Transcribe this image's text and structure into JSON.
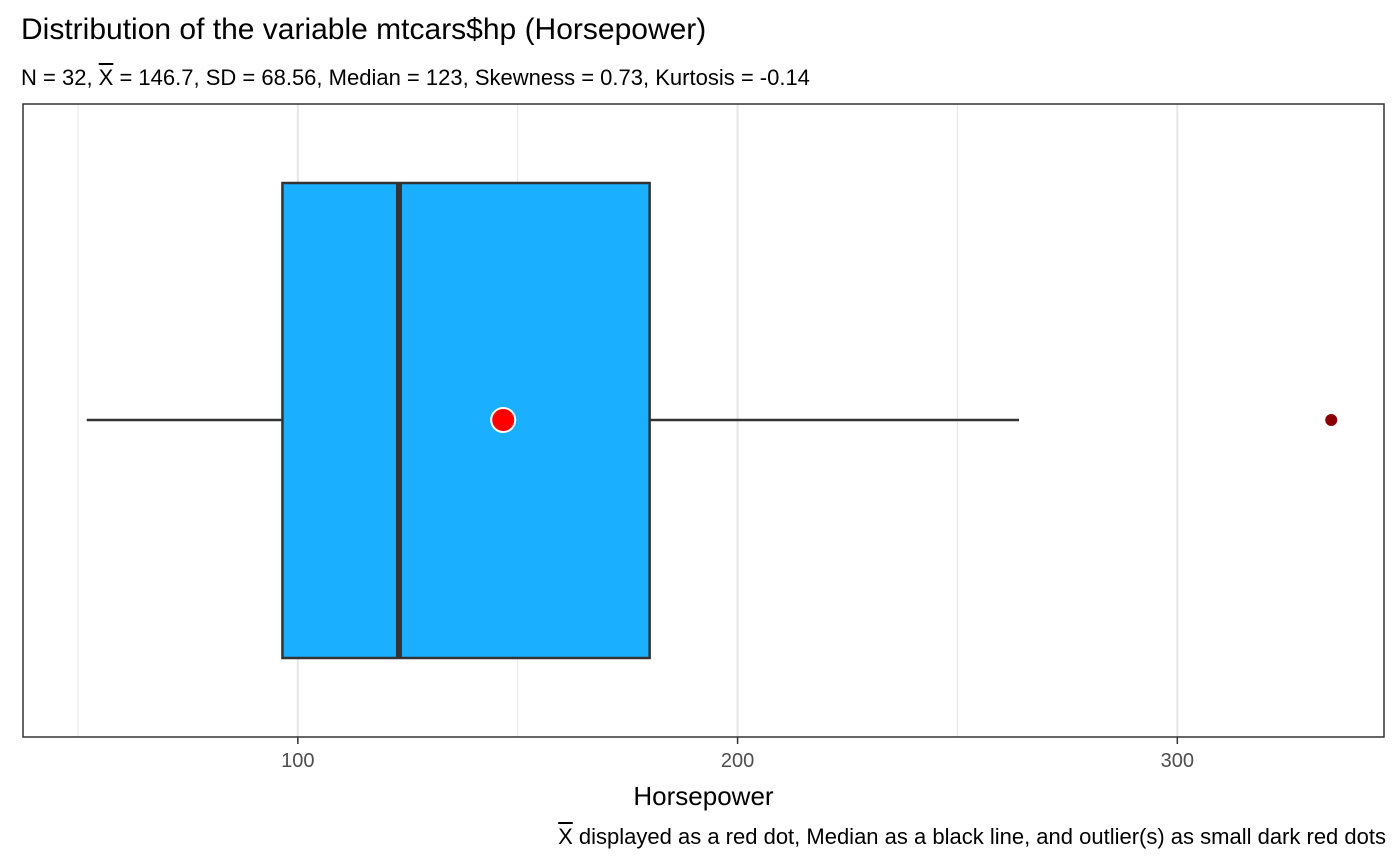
{
  "chart_data": {
    "type": "boxplot",
    "title": "Distribution of the variable mtcars$hp (Horsepower)",
    "subtitle": {
      "n": "N = 32",
      "mean_symbol": "X",
      "mean_text": " = 146.7",
      "sd": "SD = 68.56",
      "median": "Median = 123",
      "skewness": "Skewness = 0.73",
      "kurtosis": "Kurtosis = -0.14"
    },
    "xlabel": "Horsepower",
    "xlim": [
      37.5,
      347.0
    ],
    "xticks": [
      100,
      200,
      300
    ],
    "grid_major": [
      100,
      200,
      300
    ],
    "grid_minor": [
      50,
      150,
      250
    ],
    "stats": {
      "min": 52,
      "q1": 96.5,
      "median": 123,
      "q3": 180,
      "max": 264,
      "mean": 146.7,
      "sd": 68.56,
      "n": 32
    },
    "outliers": [
      335
    ],
    "colors": {
      "box_fill": "#1AB0FF",
      "box_stroke": "#333333",
      "mean_dot": "#FF0000",
      "outlier_dot": "#8B0000",
      "grid": "#E6E6E6",
      "tick_text": "#4D4D4D"
    },
    "caption": {
      "symbol": "X",
      "text": " displayed as a red dot, Median as a black line, and outlier(s) as small dark red dots"
    }
  }
}
